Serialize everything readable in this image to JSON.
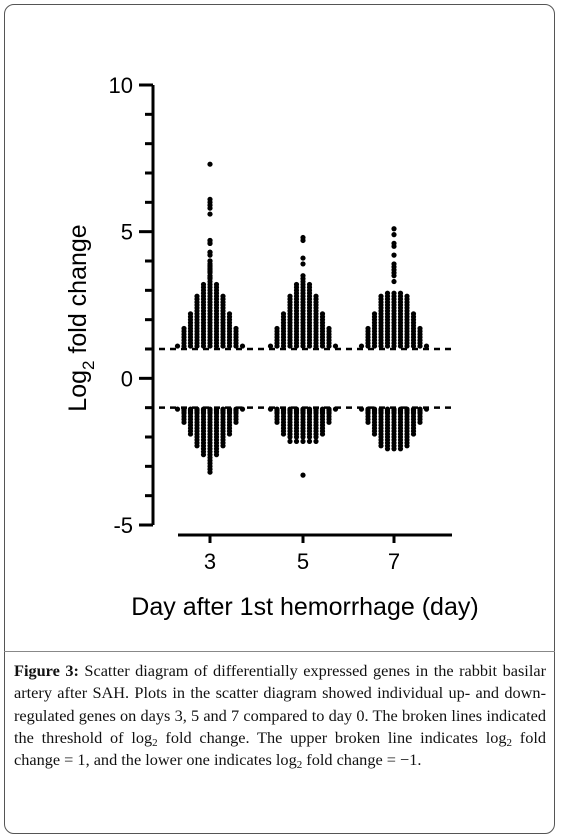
{
  "chart_data": {
    "type": "scatter",
    "title": "",
    "ylabel_base": "Log",
    "ylabel_sub": "2",
    "ylabel_rest": " fold change",
    "xlabel": "Day after 1st hemorrhage (day)",
    "ylim": [
      -5,
      10
    ],
    "yticks": [
      "10",
      "5",
      "0",
      "-5"
    ],
    "ytick_values": [
      10,
      5,
      0,
      -5
    ],
    "categories": [
      "3",
      "5",
      "7"
    ],
    "thresholds": [
      1,
      -1
    ],
    "point_color": "#000000",
    "series": [
      {
        "x": "3",
        "up": [
          7.3,
          6.1,
          6.0,
          5.9,
          5.8,
          5.6,
          4.7,
          4.7,
          4.6,
          4.6,
          4.3,
          4.3,
          4.2,
          4.0,
          4.0,
          3.9,
          3.85,
          3.8,
          3.75,
          3.7,
          3.65,
          3.6,
          3.5,
          3.45,
          3.4,
          3.3,
          3.2,
          3.1,
          3.0,
          2.9,
          2.8,
          2.7,
          2.6,
          2.5,
          2.4,
          2.3,
          2.2,
          2.1,
          2.0,
          1.9,
          1.8,
          1.7,
          1.6,
          1.5,
          1.4,
          1.3,
          1.2,
          1.1
        ],
        "down": [
          -1.05,
          -1.1,
          -1.15,
          -1.2,
          -1.3,
          -1.4,
          -1.5,
          -1.6,
          -1.7,
          -1.8,
          -1.9,
          -2.0,
          -2.1,
          -2.2,
          -2.3,
          -2.4,
          -2.5,
          -2.6,
          -2.7,
          -2.8,
          -2.9,
          -3.0,
          -3.1,
          -3.2
        ]
      },
      {
        "x": "5",
        "up": [
          4.8,
          4.7,
          4.1,
          3.9,
          3.5,
          3.4,
          3.3,
          3.2,
          3.1,
          3.0,
          2.9,
          2.8,
          2.7,
          2.6,
          2.5,
          2.4,
          2.3,
          2.2,
          2.1,
          2.0,
          1.9,
          1.8,
          1.7,
          1.6,
          1.5,
          1.4,
          1.3,
          1.2,
          1.1
        ],
        "down": [
          -1.05,
          -1.1,
          -1.15,
          -1.2,
          -1.3,
          -1.4,
          -1.5,
          -1.6,
          -1.7,
          -1.8,
          -1.9,
          -2.0,
          -2.15,
          -3.3
        ]
      },
      {
        "x": "7",
        "up": [
          5.1,
          4.9,
          4.6,
          4.5,
          4.2,
          3.9,
          3.8,
          3.7,
          3.6,
          3.5,
          3.3,
          2.9,
          2.8,
          2.7,
          2.6,
          2.5,
          2.4,
          2.3,
          2.2,
          2.1,
          2.0,
          1.9,
          1.8,
          1.7,
          1.6,
          1.5,
          1.4,
          1.3,
          1.2,
          1.1
        ],
        "down": [
          -1.05,
          -1.1,
          -1.15,
          -1.2,
          -1.3,
          -1.4,
          -1.5,
          -1.6,
          -1.7,
          -1.8,
          -1.9,
          -2.0,
          -2.1,
          -2.2,
          -2.3,
          -2.4
        ]
      }
    ]
  },
  "caption": {
    "label": "Figure 3:",
    "text_1": " Scatter diagram of differentially expressed genes in the rabbit basilar artery after SAH. Plots in the scatter diagram showed individual up- and down-regulated genes on days 3, 5 and 7 compared to day 0. The broken lines indicated the threshold of log",
    "sub_1": "2",
    "text_2": " fold change. The upper broken line indicates log",
    "sub_2": "2",
    "text_3": " fold change = 1, and the lower one indicates log",
    "sub_3": "2",
    "text_4": " fold change = −1."
  }
}
